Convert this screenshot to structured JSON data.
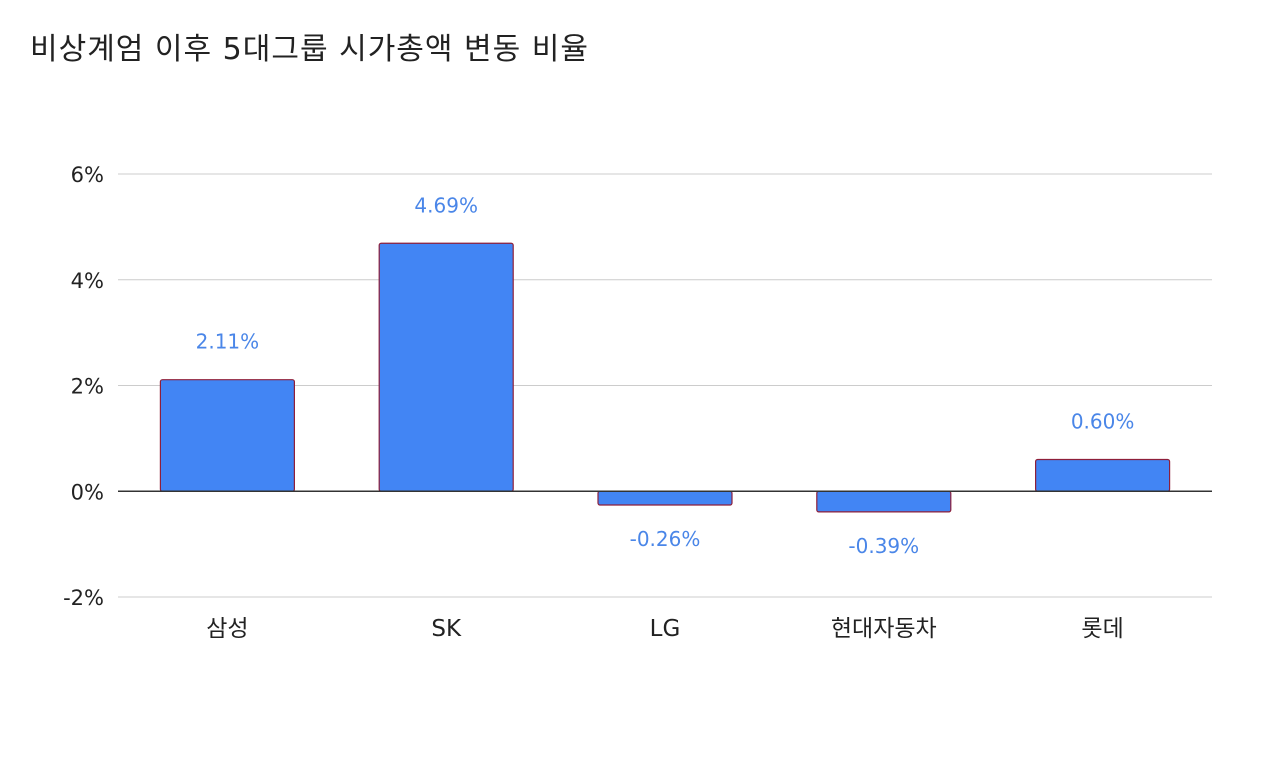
{
  "chart_data": {
    "type": "bar",
    "title": "비상계엄 이후 5대그룹 시가총액 변동 비율",
    "categories": [
      "삼성",
      "SK",
      "LG",
      "현대자동차",
      "롯데"
    ],
    "values": [
      2.11,
      4.69,
      -0.26,
      -0.39,
      0.6
    ],
    "data_labels": [
      "2.11%",
      "4.69%",
      "-0.26%",
      "-0.39%",
      "0.60%"
    ],
    "xlabel": "",
    "ylabel": "",
    "ylim": [
      -2,
      6
    ],
    "yticks": [
      6,
      4,
      2,
      0,
      -2
    ],
    "ytick_labels": [
      "6%",
      "4%",
      "2%",
      "0%",
      "-2%"
    ],
    "grid": true,
    "legend": "none",
    "colors": {
      "bar_fill": "#4285f4",
      "bar_stroke": "#8e1f3a",
      "data_label": "#4a86e8",
      "gridline": "#cccccc",
      "zero_line": "#333333",
      "tick_text": "#222222"
    }
  }
}
